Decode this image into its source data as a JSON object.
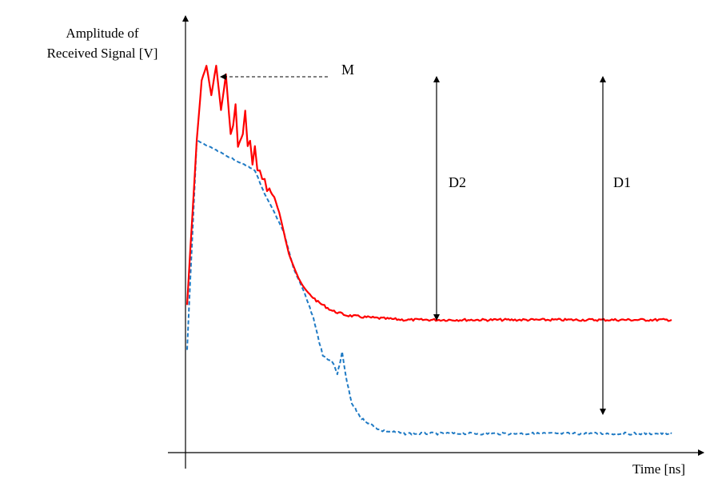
{
  "chart_data": {
    "type": "line",
    "ylabel_line1": "Amplitude of",
    "ylabel_line2": "Received Signal  [V]",
    "xlabel": "Time [ns]",
    "grid": false,
    "annotations": {
      "peak_marker": "M",
      "difference_red": "D2",
      "difference_blue": "D1"
    },
    "series": [
      {
        "style": "solid",
        "color": "#ff0000",
        "x": [
          0,
          2,
          3,
          4,
          5,
          6,
          7,
          8,
          9,
          9.5,
          10,
          10.5,
          11,
          11.5,
          12,
          12.5,
          13,
          13.5,
          14,
          14.5,
          15,
          15.5,
          16,
          16.5,
          17,
          17.5,
          18,
          19,
          20,
          21,
          22,
          23,
          24,
          25,
          27,
          30,
          33,
          36,
          40,
          45,
          50,
          60,
          70,
          80,
          90,
          100
        ],
        "y": [
          0.05,
          0.6,
          0.8,
          0.85,
          0.75,
          0.85,
          0.7,
          0.82,
          0.62,
          0.65,
          0.72,
          0.58,
          0.6,
          0.62,
          0.7,
          0.58,
          0.6,
          0.52,
          0.58,
          0.5,
          0.5,
          0.47,
          0.47,
          0.43,
          0.44,
          0.42,
          0.41,
          0.36,
          0.29,
          0.22,
          0.18,
          0.14,
          0.11,
          0.09,
          0.06,
          0.03,
          0.015,
          0.01,
          0.005,
          0,
          0,
          0,
          0,
          0,
          0,
          0
        ]
      },
      {
        "style": "dashed",
        "color": "#1f7ac4",
        "x": [
          0,
          2,
          14,
          16,
          18,
          20,
          22,
          24,
          26,
          28,
          29,
          30,
          31,
          31.5,
          32,
          33,
          34,
          36,
          38,
          40,
          45,
          50,
          60,
          70,
          80,
          90,
          100
        ],
        "y": [
          -0.1,
          0.6,
          0.5,
          0.42,
          0.36,
          0.29,
          0.17,
          0.1,
          0.01,
          -0.12,
          -0.13,
          -0.14,
          -0.18,
          -0.15,
          -0.11,
          -0.21,
          -0.28,
          -0.33,
          -0.35,
          -0.37,
          -0.38,
          -0.38,
          -0.38,
          -0.38,
          -0.38,
          -0.38,
          -0.38
        ]
      }
    ]
  }
}
